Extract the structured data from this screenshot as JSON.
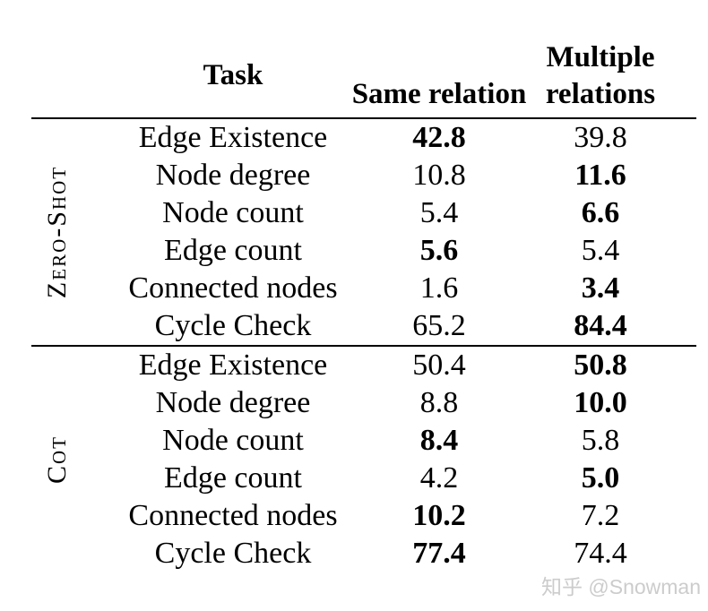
{
  "table": {
    "header": {
      "task_label": "Task",
      "col_same_label": "Same relation",
      "col_multiple_label": "Multiple relations"
    },
    "sections": [
      {
        "label": "Zero-Shot",
        "rows": [
          {
            "task": "Edge Existence",
            "same": {
              "value": "42.8",
              "bold": true
            },
            "multiple": {
              "value": "39.8",
              "bold": false
            }
          },
          {
            "task": "Node degree",
            "same": {
              "value": "10.8",
              "bold": false
            },
            "multiple": {
              "value": "11.6",
              "bold": true
            }
          },
          {
            "task": "Node count",
            "same": {
              "value": "5.4",
              "bold": false
            },
            "multiple": {
              "value": "6.6",
              "bold": true
            }
          },
          {
            "task": "Edge count",
            "same": {
              "value": "5.6",
              "bold": true
            },
            "multiple": {
              "value": "5.4",
              "bold": false
            }
          },
          {
            "task": "Connected nodes",
            "same": {
              "value": "1.6",
              "bold": false
            },
            "multiple": {
              "value": "3.4",
              "bold": true
            }
          },
          {
            "task": "Cycle Check",
            "same": {
              "value": "65.2",
              "bold": false
            },
            "multiple": {
              "value": "84.4",
              "bold": true
            }
          }
        ]
      },
      {
        "label": "Cot",
        "rows": [
          {
            "task": "Edge Existence",
            "same": {
              "value": "50.4",
              "bold": false
            },
            "multiple": {
              "value": "50.8",
              "bold": true
            }
          },
          {
            "task": "Node degree",
            "same": {
              "value": "8.8",
              "bold": false
            },
            "multiple": {
              "value": "10.0",
              "bold": true
            }
          },
          {
            "task": "Node count",
            "same": {
              "value": "8.4",
              "bold": true
            },
            "multiple": {
              "value": "5.8",
              "bold": false
            }
          },
          {
            "task": "Edge count",
            "same": {
              "value": "4.2",
              "bold": false
            },
            "multiple": {
              "value": "5.0",
              "bold": true
            }
          },
          {
            "task": "Connected nodes",
            "same": {
              "value": "10.2",
              "bold": true
            },
            "multiple": {
              "value": "7.2",
              "bold": false
            }
          },
          {
            "task": "Cycle Check",
            "same": {
              "value": "77.4",
              "bold": true
            },
            "multiple": {
              "value": "74.4",
              "bold": false
            }
          }
        ]
      }
    ]
  },
  "watermark": {
    "text": "知乎 @Snowman"
  },
  "colors": {
    "text": "#000000",
    "rule": "#000000",
    "watermark": "#cccccc",
    "background": "#ffffff"
  }
}
